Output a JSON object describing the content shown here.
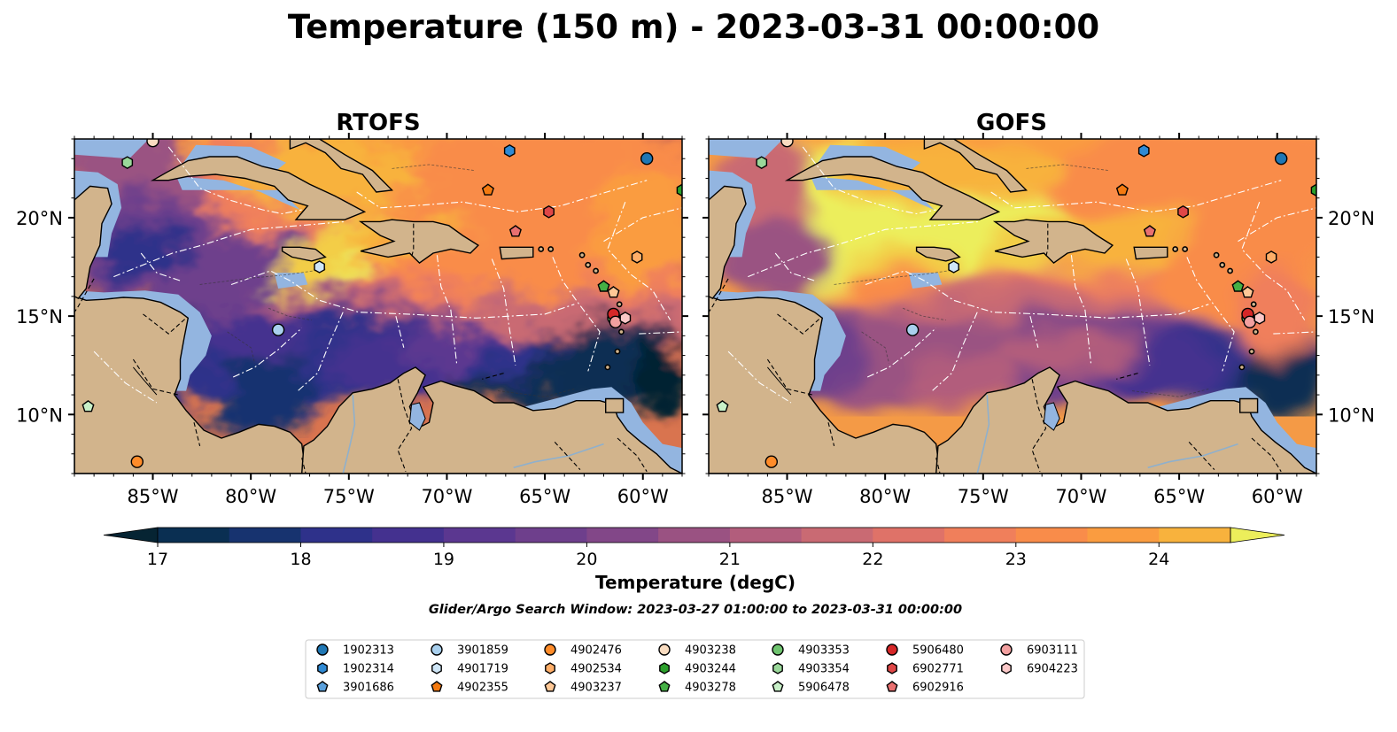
{
  "title": "Temperature (150 m) - 2023-03-31 00:00:00",
  "panels": [
    {
      "title": "RTOFS",
      "variant": "rtofs"
    },
    {
      "title": "GOFS",
      "variant": "gofs"
    }
  ],
  "axes": {
    "lon_ticks": [
      "85°W",
      "80°W",
      "75°W",
      "70°W",
      "65°W",
      "60°W"
    ],
    "lat_ticks": [
      "20°N",
      "15°N",
      "10°N"
    ],
    "lon_range": [
      -89,
      -58
    ],
    "lat_range": [
      7,
      24
    ]
  },
  "colorbar": {
    "label": "Temperature (degC)",
    "ticks": [
      "17",
      "18",
      "19",
      "20",
      "21",
      "22",
      "23",
      "24"
    ],
    "min": 16.75,
    "max": 24.5,
    "step": 0.5,
    "extend": "both",
    "colors": [
      "#062433",
      "#0a2f52",
      "#17336f",
      "#2e318a",
      "#44318f",
      "#5b3790",
      "#6e3f8c",
      "#824788",
      "#9a5282",
      "#b25d7c",
      "#c96a73",
      "#df7268",
      "#f07f5b",
      "#f98c4a",
      "#fa9c40",
      "#f8b23d",
      "#f3cd46",
      "#ecee5b"
    ]
  },
  "search_window": "Glider/Argo Search Window: 2023-03-27 01:00:00 to 2023-03-31 00:00:00",
  "colors": {
    "land": "#d2b48c",
    "shelf": "#93b5e0",
    "river": "#8fb0cc"
  },
  "floats": [
    {
      "id": "1902313",
      "marker": "circle",
      "color": "#1f77b4",
      "lon": -59.8,
      "lat": 23.0
    },
    {
      "id": "1902314",
      "marker": "hexagon",
      "color": "#2f8ad4",
      "lon": -66.8,
      "lat": 23.4
    },
    {
      "id": "3901686",
      "marker": "pentagon",
      "color": "#5aa0dc",
      "lon": -85.0,
      "lat": 23.9
    },
    {
      "id": "3901859",
      "marker": "circle",
      "color": "#a9d0ee",
      "lon": -78.6,
      "lat": 14.3
    },
    {
      "id": "4901719",
      "marker": "hexagon",
      "color": "#cfe6f7",
      "lon": -76.5,
      "lat": 17.5
    },
    {
      "id": "4902355",
      "marker": "pentagon",
      "color": "#f47a10",
      "lon": -67.9,
      "lat": 21.4
    },
    {
      "id": "4902476",
      "marker": "circle",
      "color": "#ff8c2a",
      "lon": -85.8,
      "lat": 7.6
    },
    {
      "id": "4902534",
      "marker": "hexagon",
      "color": "#ffae68",
      "lon": -60.3,
      "lat": 18.0
    },
    {
      "id": "4903237",
      "marker": "pentagon",
      "color": "#ffc896",
      "lon": -61.5,
      "lat": 16.2
    },
    {
      "id": "4903238",
      "marker": "circle",
      "color": "#f9dcc0",
      "lon": -85.0,
      "lat": 23.9
    },
    {
      "id": "4903244",
      "marker": "hexagon",
      "color": "#2ca02c",
      "lon": -58.0,
      "lat": 21.4
    },
    {
      "id": "4903278",
      "marker": "pentagon",
      "color": "#45b045",
      "lon": -62.0,
      "lat": 16.5
    },
    {
      "id": "4903353",
      "marker": "circle",
      "color": "#6fc46f",
      "lon": -61.5,
      "lat": 14.9
    },
    {
      "id": "4903354",
      "marker": "hexagon",
      "color": "#9ad89a",
      "lon": -86.3,
      "lat": 22.8
    },
    {
      "id": "5906478",
      "marker": "pentagon",
      "color": "#c8f0c8",
      "lon": -88.3,
      "lat": 10.4
    },
    {
      "id": "5906480",
      "marker": "circle",
      "color": "#d62728",
      "lon": -61.5,
      "lat": 15.1
    },
    {
      "id": "6902771",
      "marker": "hexagon",
      "color": "#df4747",
      "lon": -64.8,
      "lat": 20.3
    },
    {
      "id": "6902916",
      "marker": "pentagon",
      "color": "#e97070",
      "lon": -66.5,
      "lat": 19.3
    },
    {
      "id": "6903111",
      "marker": "circle",
      "color": "#f3a0a0",
      "lon": -61.4,
      "lat": 14.7
    },
    {
      "id": "6904223",
      "marker": "hexagon",
      "color": "#fbc8c8",
      "lon": -60.9,
      "lat": 14.9
    }
  ]
}
